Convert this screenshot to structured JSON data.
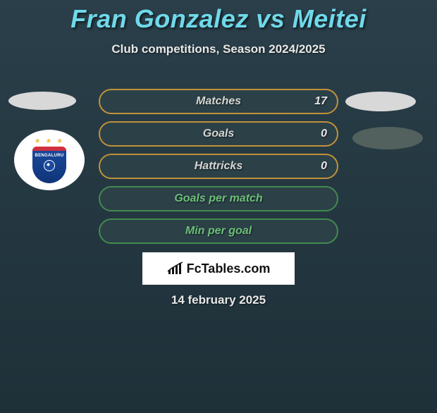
{
  "title": "Fran Gonzalez vs Meitei",
  "title_color": "#6fd9ea",
  "subtitle": "Club competitions, Season 2024/2025",
  "stats": [
    {
      "label": "Matches",
      "value": "17",
      "border": "#c0923a",
      "bg": "#2c4048",
      "label_color": "#d4d6d2",
      "value_color": "#e6e6e6"
    },
    {
      "label": "Goals",
      "value": "0",
      "border": "#c0923a",
      "bg": "#2c4048",
      "label_color": "#d4d6d2",
      "value_color": "#e6e6e6"
    },
    {
      "label": "Hattricks",
      "value": "0",
      "border": "#c0923a",
      "bg": "#2c4048",
      "label_color": "#d4d6d2",
      "value_color": "#e6e6e6"
    },
    {
      "label": "Goals per match",
      "value": "",
      "border": "#438a4f",
      "bg": "#2c4048",
      "label_color": "#6cc079",
      "value_color": "#e6e6e6"
    },
    {
      "label": "Min per goal",
      "value": "",
      "border": "#438a4f",
      "bg": "#2c4048",
      "label_color": "#6cc079",
      "value_color": "#e6e6e6"
    }
  ],
  "badge_team": "BENGALURU",
  "watermark": "FcTables.com",
  "date": "14 february 2025",
  "colors": {
    "background_top": "#2a3f4a",
    "background_bottom": "#1e3038",
    "ellipse_light": "#d8d8d8",
    "ellipse_dark": "#53615e"
  }
}
